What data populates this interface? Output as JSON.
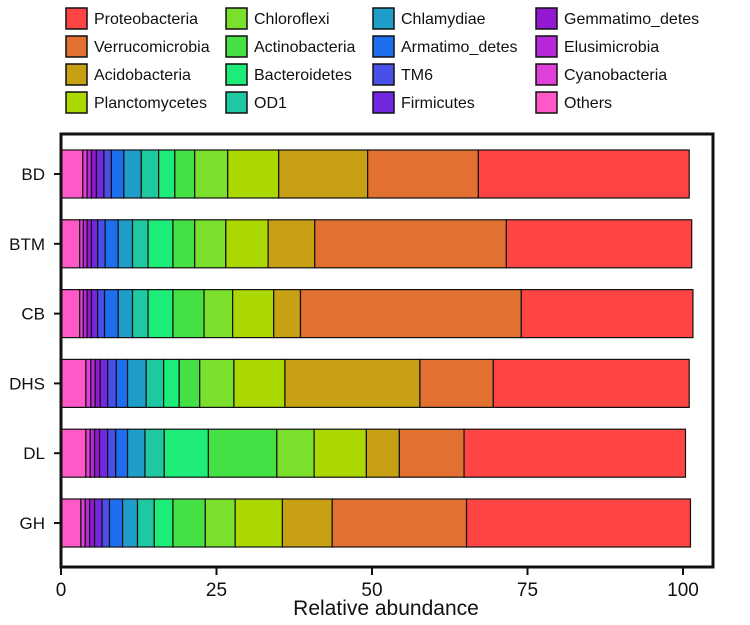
{
  "chart_data": {
    "type": "bar",
    "orientation": "horizontal",
    "stacked": true,
    "xlabel": "Relative abundance",
    "ylabel": "",
    "xlim": [
      0,
      100
    ],
    "xticks": [
      0,
      25,
      50,
      75,
      100
    ],
    "grid": false,
    "legend_position": "top",
    "categories": [
      "BD",
      "BTM",
      "CB",
      "DHS",
      "DL",
      "GH"
    ],
    "series": [
      {
        "name": "Others",
        "color": "#ff59c8",
        "values": [
          3.5,
          3.0,
          3.0,
          4.0,
          4.0,
          3.2
        ]
      },
      {
        "name": "Cyanobacteria",
        "color": "#e040d8",
        "values": [
          0.7,
          0.6,
          0.6,
          0.8,
          0.7,
          0.7
        ]
      },
      {
        "name": "Elusimicrobia",
        "color": "#b828d8",
        "values": [
          0.7,
          0.6,
          0.6,
          0.7,
          0.7,
          0.7
        ]
      },
      {
        "name": "Gemmatimo_detes",
        "color": "#9418d0",
        "values": [
          0.8,
          0.7,
          0.7,
          0.8,
          0.8,
          0.8
        ]
      },
      {
        "name": "Firmicutes",
        "color": "#7228e0",
        "values": [
          1.2,
          1.0,
          1.0,
          1.2,
          1.3,
          1.2
        ]
      },
      {
        "name": "TM6",
        "color": "#4850e8",
        "values": [
          1.2,
          1.2,
          1.1,
          1.4,
          1.3,
          1.2
        ]
      },
      {
        "name": "Armatimo_detes",
        "color": "#1e6ef0",
        "values": [
          2.0,
          2.1,
          2.2,
          1.8,
          1.9,
          2.1
        ]
      },
      {
        "name": "Chlamydiae",
        "color": "#1e9ec8",
        "values": [
          2.8,
          2.3,
          2.3,
          3.0,
          2.8,
          2.4
        ]
      },
      {
        "name": "OD1",
        "color": "#1ec8a0",
        "values": [
          2.8,
          2.5,
          2.5,
          2.8,
          3.1,
          2.7
        ]
      },
      {
        "name": "Bacteroidetes",
        "color": "#1eec78",
        "values": [
          2.6,
          4.0,
          4.0,
          2.5,
          7.1,
          3.0
        ]
      },
      {
        "name": "Actinobacteria",
        "color": "#44e044",
        "values": [
          3.2,
          3.5,
          5.0,
          3.3,
          11.0,
          5.2
        ]
      },
      {
        "name": "Chloroflexi",
        "color": "#7ae02c",
        "values": [
          5.3,
          5.0,
          4.6,
          5.5,
          6.0,
          4.8
        ]
      },
      {
        "name": "Planctomycetes",
        "color": "#aad800",
        "values": [
          8.2,
          6.8,
          6.6,
          8.2,
          8.4,
          7.6
        ]
      },
      {
        "name": "Acidobacteria",
        "color": "#c8a014",
        "values": [
          14.3,
          7.5,
          4.3,
          21.7,
          5.3,
          8.0
        ]
      },
      {
        "name": "Verrucomicrobia",
        "color": "#e27030",
        "values": [
          17.8,
          30.8,
          35.5,
          11.8,
          10.4,
          21.6
        ]
      },
      {
        "name": "Proteobacteria",
        "color": "#ff4444",
        "values": [
          33.9,
          29.8,
          27.6,
          31.5,
          35.6,
          36.0
        ]
      }
    ],
    "legend_order": [
      "Proteobacteria",
      "Verrucomicrobia",
      "Acidobacteria",
      "Planctomycetes",
      "Chloroflexi",
      "Actinobacteria",
      "Bacteroidetes",
      "OD1",
      "Chlamydiae",
      "Armatimo_detes",
      "TM6",
      "Firmicutes",
      "Gemmatimo_detes",
      "Elusimicrobia",
      "Cyanobacteria",
      "Others"
    ]
  }
}
